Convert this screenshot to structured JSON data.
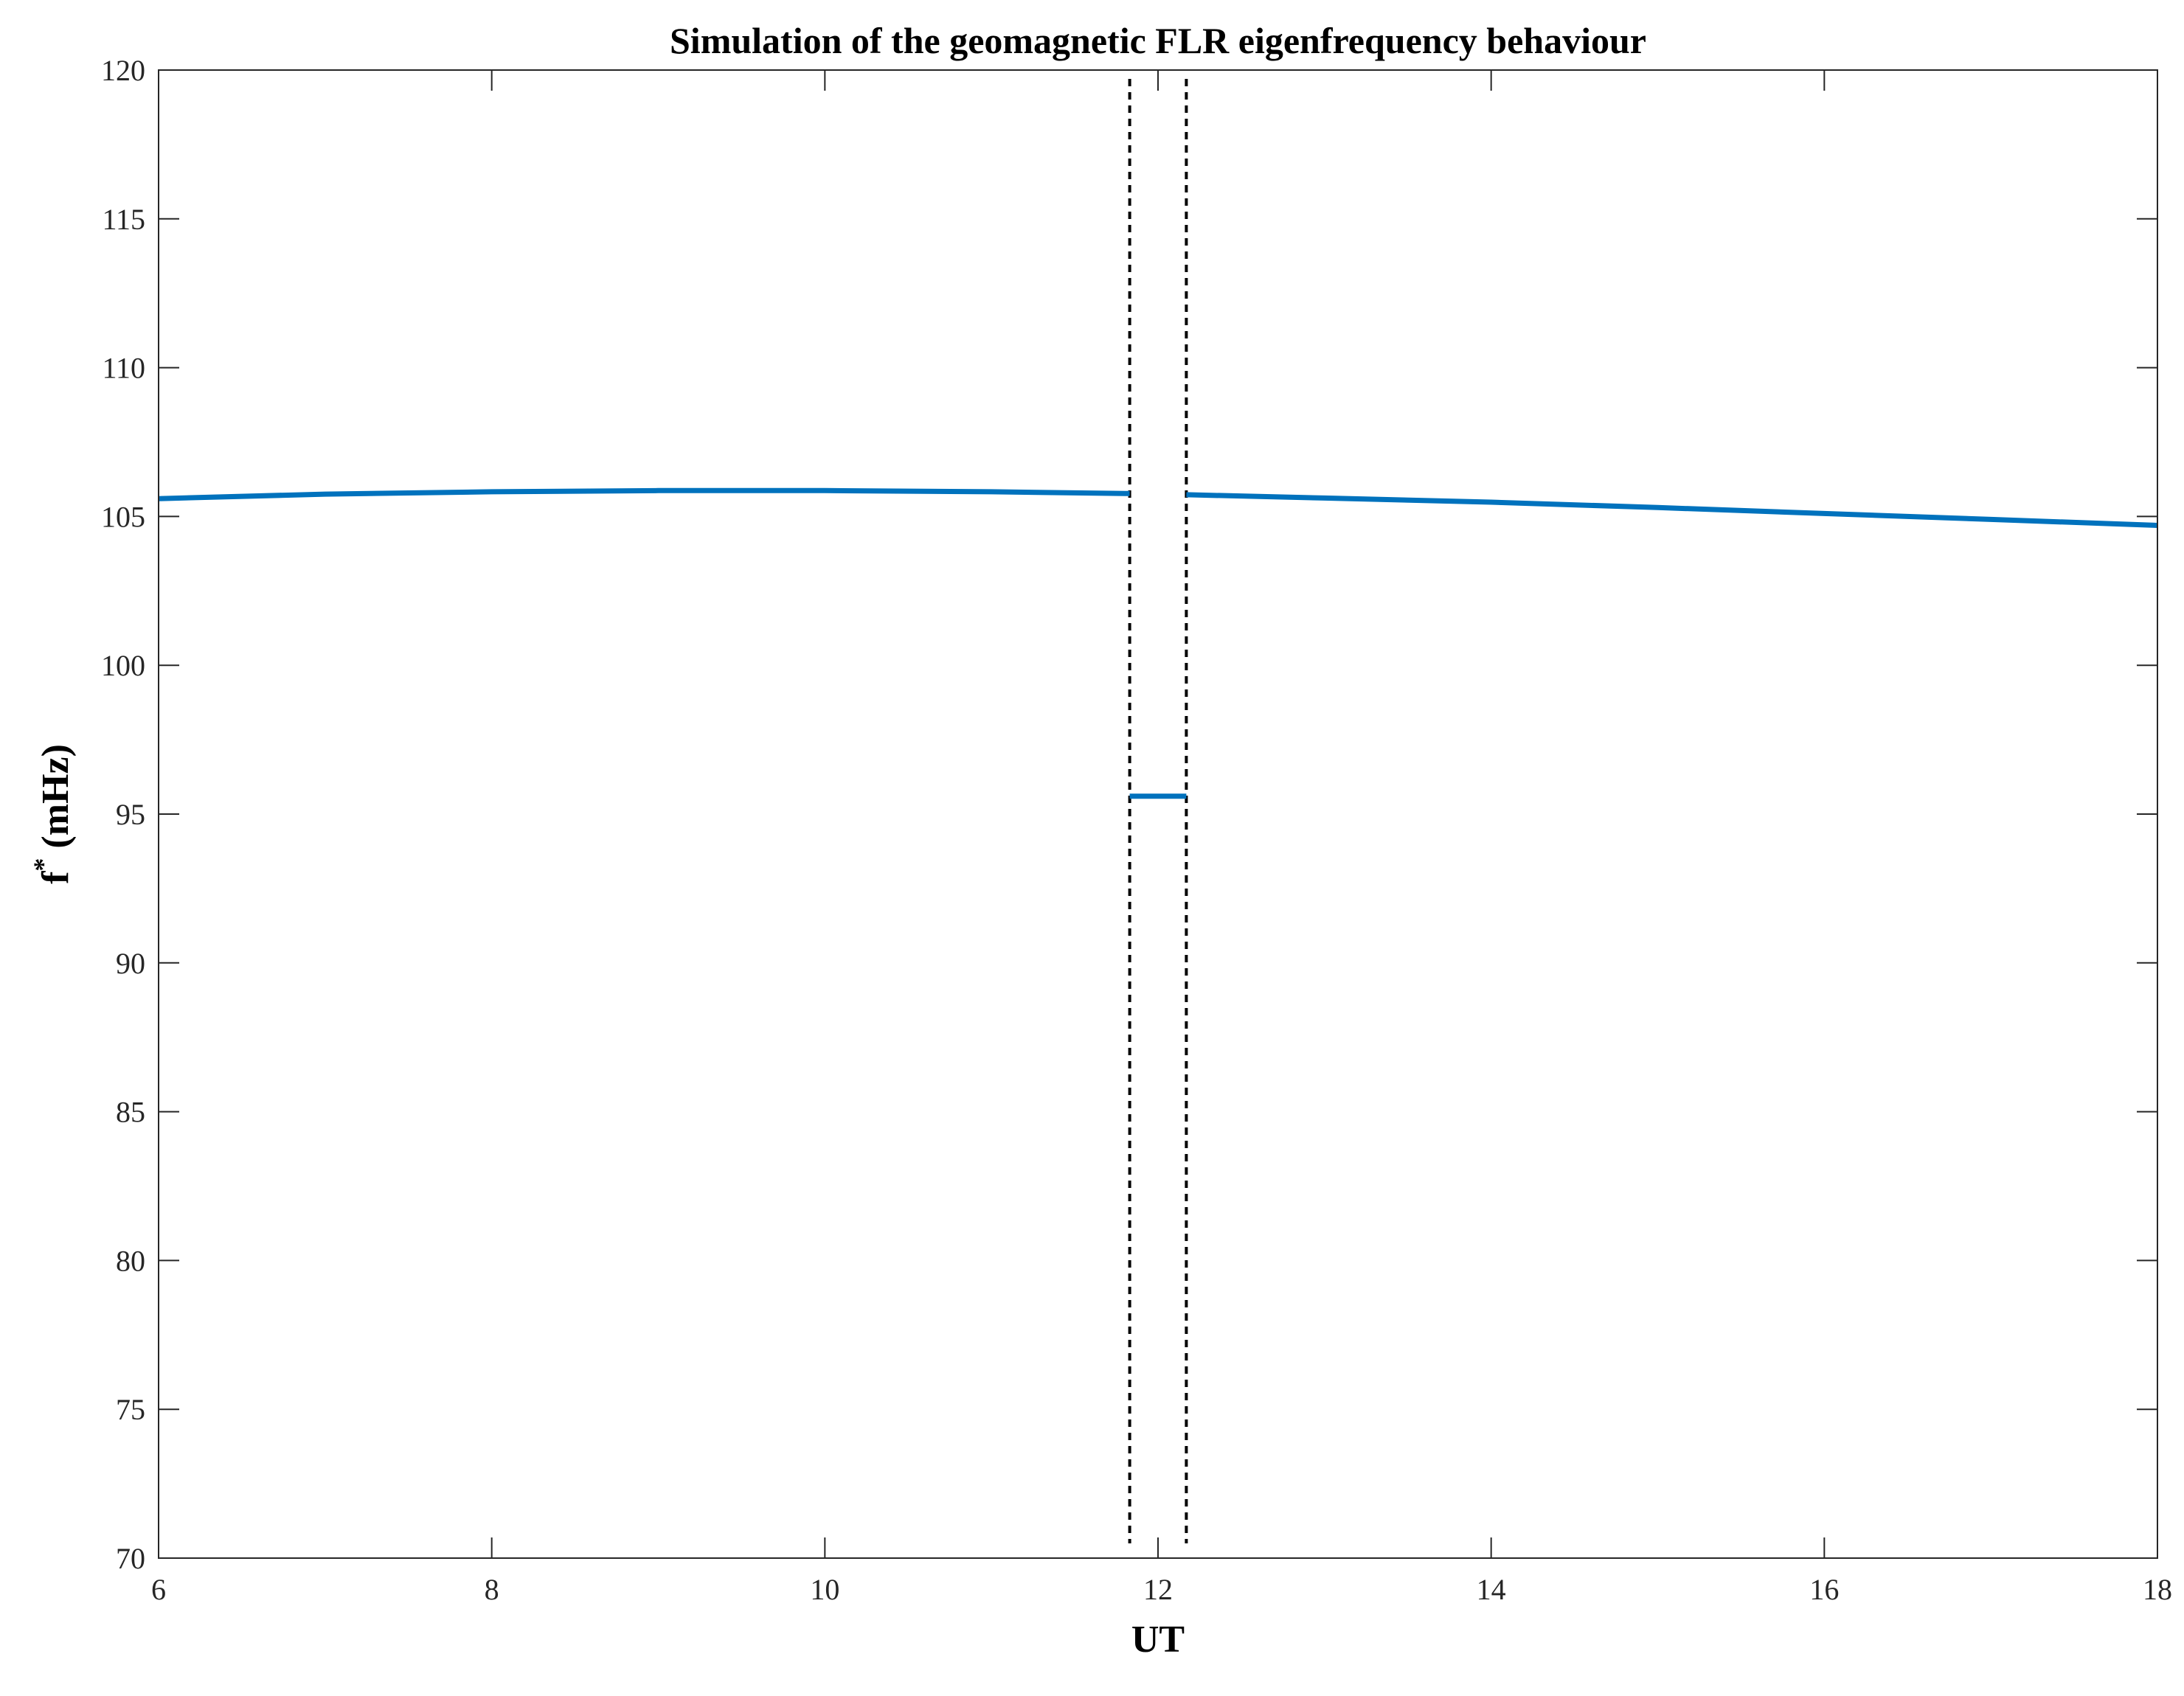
{
  "chart_data": {
    "type": "line",
    "title": "Simulation of the geomagnetic FLR eigenfrequency behaviour",
    "xlabel": "UT",
    "ylabel_main": "f",
    "ylabel_sup": "*",
    "ylabel_unit": " (mHz)",
    "xlim": [
      6,
      18
    ],
    "ylim": [
      70,
      120
    ],
    "xticks": [
      6,
      8,
      10,
      12,
      14,
      16,
      18
    ],
    "yticks": [
      70,
      75,
      80,
      85,
      90,
      95,
      100,
      105,
      110,
      115,
      120
    ],
    "grid": false,
    "line_color": "#0072BD",
    "marker_color": "#000000",
    "series": [
      {
        "segments": [
          {
            "x": [
              6,
              7,
              8,
              9,
              10,
              11,
              11.83
            ],
            "y": [
              105.6,
              105.75,
              105.83,
              105.87,
              105.87,
              105.83,
              105.77
            ]
          },
          {
            "x": [
              11.83,
              12.17
            ],
            "y": [
              95.6,
              95.6
            ]
          },
          {
            "x": [
              12.17,
              13,
              14,
              15,
              16,
              17,
              18
            ],
            "y": [
              105.73,
              105.62,
              105.48,
              105.3,
              105.1,
              104.9,
              104.7
            ]
          }
        ]
      }
    ],
    "vlines": [
      {
        "x": 11.83,
        "style": "dotted"
      },
      {
        "x": 12.17,
        "style": "dotted"
      }
    ]
  }
}
